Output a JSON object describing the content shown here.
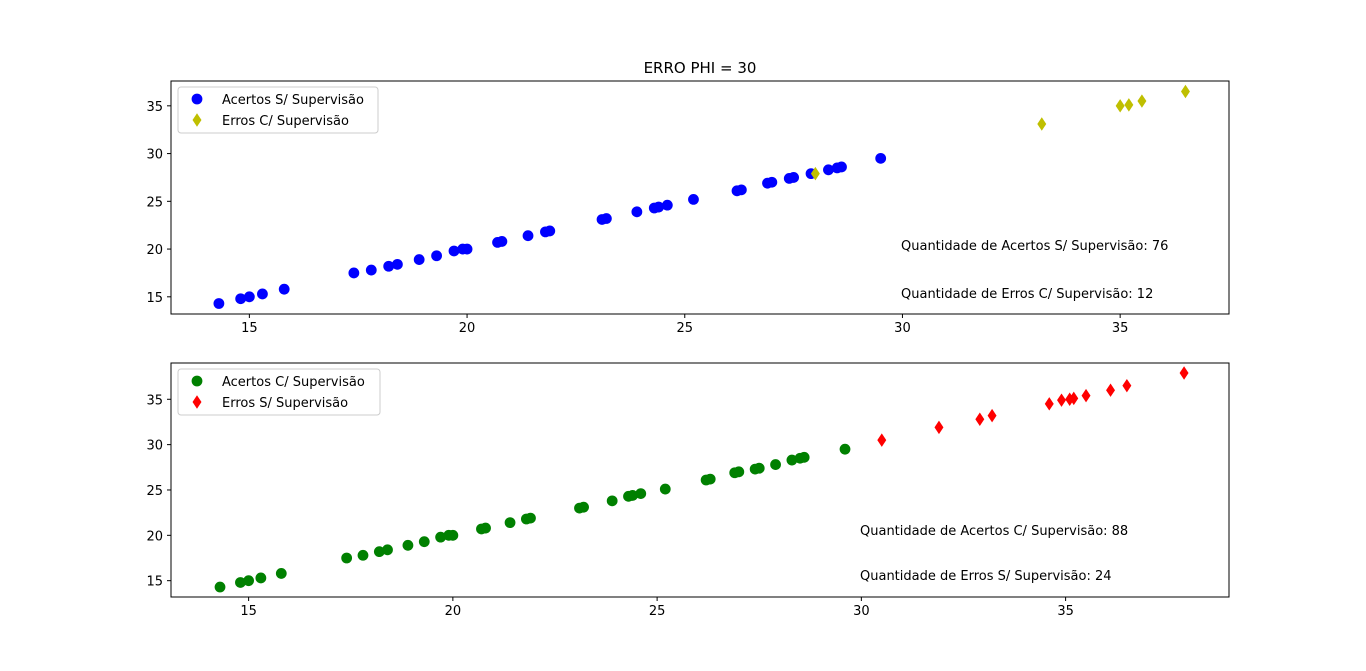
{
  "title": "ERRO PHI = 30",
  "chart_data": [
    {
      "type": "scatter",
      "title": "ERRO PHI = 30",
      "xlabel": "",
      "ylabel": "",
      "xlim": [
        13.2,
        37.5
      ],
      "ylim": [
        13.2,
        37.6
      ],
      "xticks": [
        15,
        20,
        25,
        30,
        35
      ],
      "yticks": [
        15,
        20,
        25,
        30,
        35
      ],
      "legend_position": "top-left",
      "series": [
        {
          "name": "Acertos S/ Supervisão",
          "marker": "circle",
          "color": "#0000ff",
          "points": [
            [
              14.3,
              14.3
            ],
            [
              14.8,
              14.8
            ],
            [
              15.0,
              15.0
            ],
            [
              15.3,
              15.3
            ],
            [
              15.8,
              15.8
            ],
            [
              17.4,
              17.5
            ],
            [
              17.8,
              17.8
            ],
            [
              18.2,
              18.2
            ],
            [
              18.4,
              18.4
            ],
            [
              18.9,
              18.9
            ],
            [
              19.3,
              19.3
            ],
            [
              19.7,
              19.8
            ],
            [
              19.9,
              20.0
            ],
            [
              20.0,
              20.0
            ],
            [
              20.7,
              20.7
            ],
            [
              20.8,
              20.8
            ],
            [
              21.4,
              21.4
            ],
            [
              21.8,
              21.8
            ],
            [
              21.9,
              21.9
            ],
            [
              23.1,
              23.1
            ],
            [
              23.2,
              23.2
            ],
            [
              23.9,
              23.9
            ],
            [
              24.3,
              24.3
            ],
            [
              24.4,
              24.4
            ],
            [
              24.6,
              24.6
            ],
            [
              25.2,
              25.2
            ],
            [
              26.2,
              26.1
            ],
            [
              26.3,
              26.2
            ],
            [
              26.9,
              26.9
            ],
            [
              27.0,
              27.0
            ],
            [
              27.4,
              27.4
            ],
            [
              27.5,
              27.5
            ],
            [
              27.9,
              27.9
            ],
            [
              28.3,
              28.3
            ],
            [
              28.5,
              28.5
            ],
            [
              28.6,
              28.6
            ],
            [
              29.5,
              29.5
            ]
          ]
        },
        {
          "name": "Erros C/ Supervisão",
          "marker": "diamond",
          "color": "#bfbf00",
          "points": [
            [
              28.0,
              27.9
            ],
            [
              33.2,
              33.1
            ],
            [
              35.0,
              35.0
            ],
            [
              35.2,
              35.1
            ],
            [
              35.5,
              35.5
            ],
            [
              36.5,
              36.5
            ]
          ]
        }
      ],
      "annotations": [
        "Quantidade de Acertos S/ Supervisão: 76",
        "Quantidade de Erros C/ Supervisão: 12"
      ]
    },
    {
      "type": "scatter",
      "title": "",
      "xlabel": "",
      "ylabel": "",
      "xlim": [
        13.1,
        39.0
      ],
      "ylim": [
        13.2,
        39.0
      ],
      "xticks": [
        15,
        20,
        25,
        30,
        35
      ],
      "yticks": [
        15,
        20,
        25,
        30,
        35
      ],
      "legend_position": "top-left",
      "series": [
        {
          "name": "Acertos C/ Supervisão",
          "marker": "circle",
          "color": "#008000",
          "points": [
            [
              14.3,
              14.3
            ],
            [
              14.8,
              14.8
            ],
            [
              15.0,
              15.0
            ],
            [
              15.3,
              15.3
            ],
            [
              15.8,
              15.8
            ],
            [
              17.4,
              17.5
            ],
            [
              17.8,
              17.8
            ],
            [
              18.2,
              18.2
            ],
            [
              18.4,
              18.4
            ],
            [
              18.9,
              18.9
            ],
            [
              19.3,
              19.3
            ],
            [
              19.7,
              19.8
            ],
            [
              19.9,
              20.0
            ],
            [
              20.0,
              20.0
            ],
            [
              20.7,
              20.7
            ],
            [
              20.8,
              20.8
            ],
            [
              21.4,
              21.4
            ],
            [
              21.8,
              21.8
            ],
            [
              21.9,
              21.9
            ],
            [
              23.1,
              23.0
            ],
            [
              23.2,
              23.1
            ],
            [
              23.9,
              23.8
            ],
            [
              24.3,
              24.3
            ],
            [
              24.4,
              24.4
            ],
            [
              24.6,
              24.6
            ],
            [
              25.2,
              25.1
            ],
            [
              26.2,
              26.1
            ],
            [
              26.3,
              26.2
            ],
            [
              26.9,
              26.9
            ],
            [
              27.0,
              27.0
            ],
            [
              27.4,
              27.3
            ],
            [
              27.5,
              27.4
            ],
            [
              27.9,
              27.8
            ],
            [
              28.3,
              28.3
            ],
            [
              28.5,
              28.5
            ],
            [
              28.6,
              28.6
            ],
            [
              29.6,
              29.5
            ]
          ]
        },
        {
          "name": "Erros S/ Supervisão",
          "marker": "diamond",
          "color": "#ff0000",
          "points": [
            [
              30.5,
              30.5
            ],
            [
              31.9,
              31.9
            ],
            [
              32.9,
              32.8
            ],
            [
              33.2,
              33.2
            ],
            [
              34.6,
              34.5
            ],
            [
              34.9,
              34.9
            ],
            [
              35.1,
              35.0
            ],
            [
              35.2,
              35.1
            ],
            [
              35.5,
              35.4
            ],
            [
              36.1,
              36.0
            ],
            [
              36.5,
              36.5
            ],
            [
              37.9,
              37.9
            ]
          ]
        }
      ],
      "annotations": [
        "Quantidade de Acertos C/ Supervisão: 88",
        "Quantidade de Erros S/ Supervisão: 24"
      ]
    }
  ]
}
